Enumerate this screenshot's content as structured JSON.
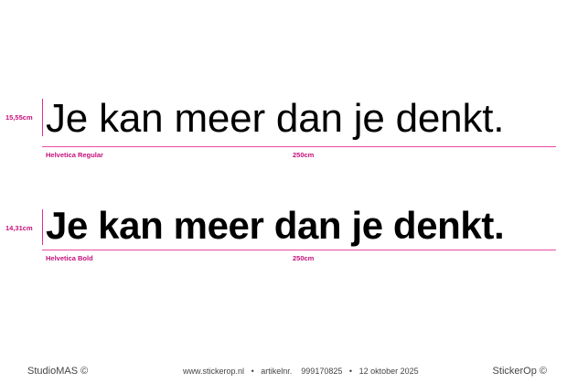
{
  "samples": [
    {
      "height": "15,55cm",
      "text": "Je kan meer dan je denkt.",
      "font_name": "Helvetica Regular",
      "width": "250cm"
    },
    {
      "height": "14,31cm",
      "text": "Je kan meer dan je denkt.",
      "font_name": "Helvetica Bold",
      "width": "250cm"
    }
  ],
  "footer": {
    "left": "StudioMAS ©",
    "website": "www.stickerop.nl",
    "sep1": "•",
    "article_label": "artikelnr.",
    "article_number": "999170825",
    "sep2": "•",
    "date": "12 oktober 2025",
    "right": "StickerOp ©"
  },
  "colors": {
    "accent": "#c4117a",
    "guide_line": "#e94aa4"
  }
}
